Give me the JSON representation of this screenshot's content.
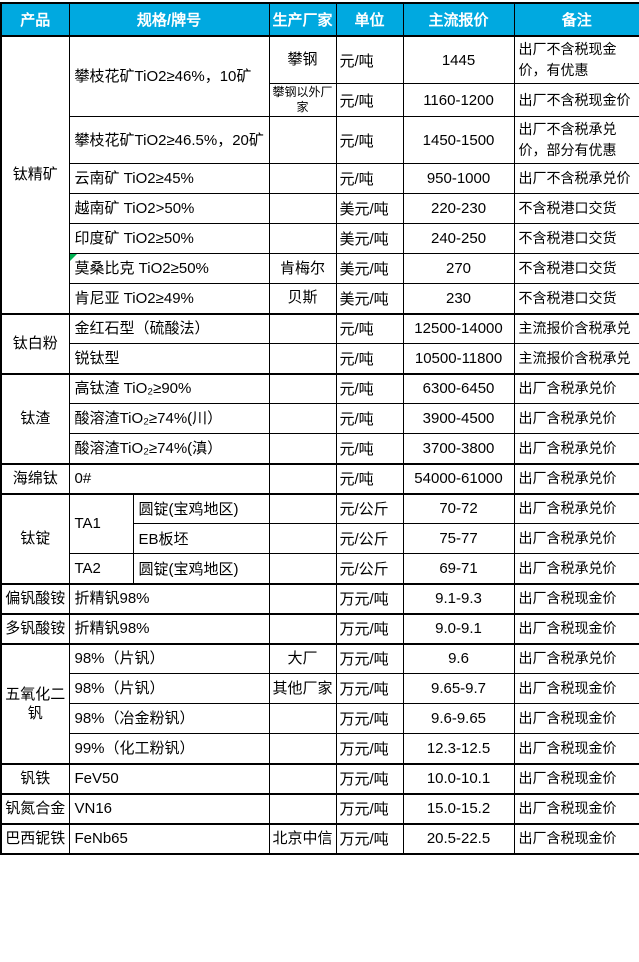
{
  "colors": {
    "header_bg": "#00A9E0",
    "header_text": "#FFFFFF",
    "border": "#000000",
    "marker_green": "#00B050"
  },
  "header": {
    "columns": [
      {
        "label": "产品",
        "colspan": 1
      },
      {
        "label": "规格/牌号",
        "colspan": 2
      },
      {
        "label": "生产厂家",
        "colspan": 1
      },
      {
        "label": "单位",
        "colspan": 1
      },
      {
        "label": "主流报价",
        "colspan": 1
      },
      {
        "label": "备注",
        "colspan": 1
      }
    ]
  },
  "sections": [
    {
      "product": "钛精矿",
      "rows": [
        {
          "cells": [
            {
              "col": "spec",
              "text": "攀枝花矿TiO2≥46%，10矿",
              "colspan": 2,
              "rowspan": 2
            },
            {
              "col": "manufacturer",
              "text": "攀钢"
            },
            {
              "col": "unit",
              "text": "元/吨"
            },
            {
              "col": "price",
              "text": "1445"
            },
            {
              "col": "note",
              "text": "出厂不含税现金价，有优惠"
            }
          ]
        },
        {
          "cells": [
            {
              "col": "manufacturer",
              "text": "攀钢以外厂家",
              "small": true
            },
            {
              "col": "unit",
              "text": "元/吨"
            },
            {
              "col": "price",
              "text": "1160-1200"
            },
            {
              "col": "note",
              "text": "出厂不含税现金价"
            }
          ]
        },
        {
          "cells": [
            {
              "col": "spec",
              "text": "攀枝花矿TiO2≥46.5%，20矿",
              "colspan": 2
            },
            {
              "col": "manufacturer",
              "text": ""
            },
            {
              "col": "unit",
              "text": "元/吨"
            },
            {
              "col": "price",
              "text": "1450-1500"
            },
            {
              "col": "note",
              "text": "出厂不含税承兑价，部分有优惠"
            }
          ]
        },
        {
          "cells": [
            {
              "col": "spec",
              "text": "云南矿 TiO2≥45%",
              "colspan": 2
            },
            {
              "col": "manufacturer",
              "text": ""
            },
            {
              "col": "unit",
              "text": "元/吨"
            },
            {
              "col": "price",
              "text": "950-1000"
            },
            {
              "col": "note",
              "text": "出厂不含税承兑价"
            }
          ]
        },
        {
          "cells": [
            {
              "col": "spec",
              "text": "越南矿 TiO2>50%",
              "colspan": 2
            },
            {
              "col": "manufacturer",
              "text": ""
            },
            {
              "col": "unit",
              "text": "美元/吨"
            },
            {
              "col": "price",
              "text": "220-230"
            },
            {
              "col": "note",
              "text": "不含税港口交货"
            }
          ]
        },
        {
          "cells": [
            {
              "col": "spec",
              "text": "印度矿 TiO2≥50%",
              "colspan": 2
            },
            {
              "col": "manufacturer",
              "text": ""
            },
            {
              "col": "unit",
              "text": "美元/吨"
            },
            {
              "col": "price",
              "text": "240-250"
            },
            {
              "col": "note",
              "text": "不含税港口交货"
            }
          ]
        },
        {
          "cells": [
            {
              "col": "spec",
              "text": "莫桑比克 TiO2≥50%",
              "colspan": 2,
              "marker": true
            },
            {
              "col": "manufacturer",
              "text": "肯梅尔"
            },
            {
              "col": "unit",
              "text": "美元/吨"
            },
            {
              "col": "price",
              "text": "270"
            },
            {
              "col": "note",
              "text": "不含税港口交货"
            }
          ]
        },
        {
          "cells": [
            {
              "col": "spec",
              "text": "肯尼亚 TiO2≥49%",
              "colspan": 2
            },
            {
              "col": "manufacturer",
              "text": "贝斯"
            },
            {
              "col": "unit",
              "text": "美元/吨"
            },
            {
              "col": "price",
              "text": "230"
            },
            {
              "col": "note",
              "text": "不含税港口交货"
            }
          ]
        }
      ]
    },
    {
      "product": "钛白粉",
      "rows": [
        {
          "cells": [
            {
              "col": "spec",
              "text": "金红石型（硫酸法）",
              "colspan": 2
            },
            {
              "col": "manufacturer",
              "text": ""
            },
            {
              "col": "unit",
              "text": "元/吨"
            },
            {
              "col": "price",
              "text": "12500-14000"
            },
            {
              "col": "note",
              "text": "主流报价含税承兑"
            }
          ]
        },
        {
          "cells": [
            {
              "col": "spec",
              "text": "锐钛型",
              "colspan": 2
            },
            {
              "col": "manufacturer",
              "text": ""
            },
            {
              "col": "unit",
              "text": "元/吨"
            },
            {
              "col": "price",
              "text": "10500-11800"
            },
            {
              "col": "note",
              "text": "主流报价含税承兑"
            }
          ]
        }
      ]
    },
    {
      "product": "钛渣",
      "rows": [
        {
          "cells": [
            {
              "col": "spec",
              "text": "高钛渣 TiO₂≥90%",
              "colspan": 2
            },
            {
              "col": "manufacturer",
              "text": ""
            },
            {
              "col": "unit",
              "text": "元/吨"
            },
            {
              "col": "price",
              "text": "6300-6450"
            },
            {
              "col": "note",
              "text": "出厂含税承兑价"
            }
          ]
        },
        {
          "cells": [
            {
              "col": "spec",
              "text": "酸溶渣TiO₂≥74%(川）",
              "colspan": 2
            },
            {
              "col": "manufacturer",
              "text": ""
            },
            {
              "col": "unit",
              "text": "元/吨"
            },
            {
              "col": "price",
              "text": "3900-4500"
            },
            {
              "col": "note",
              "text": "出厂含税承兑价"
            }
          ]
        },
        {
          "cells": [
            {
              "col": "spec",
              "text": "酸溶渣TiO₂≥74%(滇）",
              "colspan": 2
            },
            {
              "col": "manufacturer",
              "text": ""
            },
            {
              "col": "unit",
              "text": "元/吨"
            },
            {
              "col": "price",
              "text": "3700-3800"
            },
            {
              "col": "note",
              "text": "出厂含税承兑价"
            }
          ]
        }
      ]
    },
    {
      "product": "海绵钛",
      "rows": [
        {
          "cells": [
            {
              "col": "spec",
              "text": "0#",
              "colspan": 2
            },
            {
              "col": "manufacturer",
              "text": ""
            },
            {
              "col": "unit",
              "text": "元/吨"
            },
            {
              "col": "price",
              "text": "54000-61000"
            },
            {
              "col": "note",
              "text": "出厂含税承兑价"
            }
          ]
        }
      ]
    },
    {
      "product": "钛锭",
      "rows": [
        {
          "cells": [
            {
              "col": "spec-type",
              "text": "TA1",
              "rowspan": 2
            },
            {
              "col": "spec-detail",
              "text": "圆锭(宝鸡地区)"
            },
            {
              "col": "manufacturer",
              "text": ""
            },
            {
              "col": "unit",
              "text": "元/公斤"
            },
            {
              "col": "price",
              "text": "70-72"
            },
            {
              "col": "note",
              "text": "出厂含税承兑价"
            }
          ]
        },
        {
          "cells": [
            {
              "col": "spec-detail",
              "text": "EB板坯"
            },
            {
              "col": "manufacturer",
              "text": ""
            },
            {
              "col": "unit",
              "text": "元/公斤"
            },
            {
              "col": "price",
              "text": "75-77"
            },
            {
              "col": "note",
              "text": "出厂含税承兑价"
            }
          ]
        },
        {
          "cells": [
            {
              "col": "spec-type",
              "text": "TA2"
            },
            {
              "col": "spec-detail",
              "text": "圆锭(宝鸡地区)"
            },
            {
              "col": "manufacturer",
              "text": ""
            },
            {
              "col": "unit",
              "text": "元/公斤"
            },
            {
              "col": "price",
              "text": "69-71"
            },
            {
              "col": "note",
              "text": "出厂含税承兑价"
            }
          ]
        }
      ]
    },
    {
      "product": "偏钒酸铵",
      "rows": [
        {
          "cells": [
            {
              "col": "spec",
              "text": "折精钒98%",
              "colspan": 2
            },
            {
              "col": "manufacturer",
              "text": ""
            },
            {
              "col": "unit",
              "text": "万元/吨"
            },
            {
              "col": "price",
              "text": "9.1-9.3"
            },
            {
              "col": "note",
              "text": "出厂含税现金价"
            }
          ]
        }
      ]
    },
    {
      "product": "多钒酸铵",
      "rows": [
        {
          "cells": [
            {
              "col": "spec",
              "text": "折精钒98%",
              "colspan": 2
            },
            {
              "col": "manufacturer",
              "text": ""
            },
            {
              "col": "unit",
              "text": "万元/吨"
            },
            {
              "col": "price",
              "text": "9.0-9.1"
            },
            {
              "col": "note",
              "text": "出厂含税现金价"
            }
          ]
        }
      ]
    },
    {
      "product": "五氧化二钒",
      "rows": [
        {
          "cells": [
            {
              "col": "spec",
              "text": "98%（片钒）",
              "colspan": 2
            },
            {
              "col": "manufacturer",
              "text": "大厂"
            },
            {
              "col": "unit",
              "text": "万元/吨"
            },
            {
              "col": "price",
              "text": "9.6"
            },
            {
              "col": "note",
              "text": "出厂含税承兑价"
            }
          ]
        },
        {
          "cells": [
            {
              "col": "spec",
              "text": "98%（片钒）",
              "colspan": 2
            },
            {
              "col": "manufacturer",
              "text": "其他厂家"
            },
            {
              "col": "unit",
              "text": "万元/吨"
            },
            {
              "col": "price",
              "text": "9.65-9.7"
            },
            {
              "col": "note",
              "text": "出厂含税现金价"
            }
          ]
        },
        {
          "cells": [
            {
              "col": "spec",
              "text": "98%（冶金粉钒）",
              "colspan": 2
            },
            {
              "col": "manufacturer",
              "text": ""
            },
            {
              "col": "unit",
              "text": "万元/吨"
            },
            {
              "col": "price",
              "text": "9.6-9.65"
            },
            {
              "col": "note",
              "text": "出厂含税现金价"
            }
          ]
        },
        {
          "cells": [
            {
              "col": "spec",
              "text": "99%（化工粉钒）",
              "colspan": 2
            },
            {
              "col": "manufacturer",
              "text": ""
            },
            {
              "col": "unit",
              "text": "万元/吨"
            },
            {
              "col": "price",
              "text": "12.3-12.5"
            },
            {
              "col": "note",
              "text": "出厂含税现金价"
            }
          ]
        }
      ]
    },
    {
      "product": "钒铁",
      "rows": [
        {
          "cells": [
            {
              "col": "spec",
              "text": "FeV50",
              "colspan": 2
            },
            {
              "col": "manufacturer",
              "text": ""
            },
            {
              "col": "unit",
              "text": "万元/吨"
            },
            {
              "col": "price",
              "text": "10.0-10.1"
            },
            {
              "col": "note",
              "text": "出厂含税现金价"
            }
          ]
        }
      ]
    },
    {
      "product": "钒氮合金",
      "rows": [
        {
          "cells": [
            {
              "col": "spec",
              "text": "VN16",
              "colspan": 2
            },
            {
              "col": "manufacturer",
              "text": ""
            },
            {
              "col": "unit",
              "text": "万元/吨"
            },
            {
              "col": "price",
              "text": "15.0-15.2"
            },
            {
              "col": "note",
              "text": "出厂含税现金价"
            }
          ]
        }
      ]
    },
    {
      "product": "巴西铌铁",
      "rows": [
        {
          "cells": [
            {
              "col": "spec",
              "text": "FeNb65",
              "colspan": 2
            },
            {
              "col": "manufacturer",
              "text": "北京中信"
            },
            {
              "col": "unit",
              "text": "万元/吨"
            },
            {
              "col": "price",
              "text": "20.5-22.5"
            },
            {
              "col": "note",
              "text": "出厂含税现金价"
            }
          ]
        }
      ]
    }
  ]
}
